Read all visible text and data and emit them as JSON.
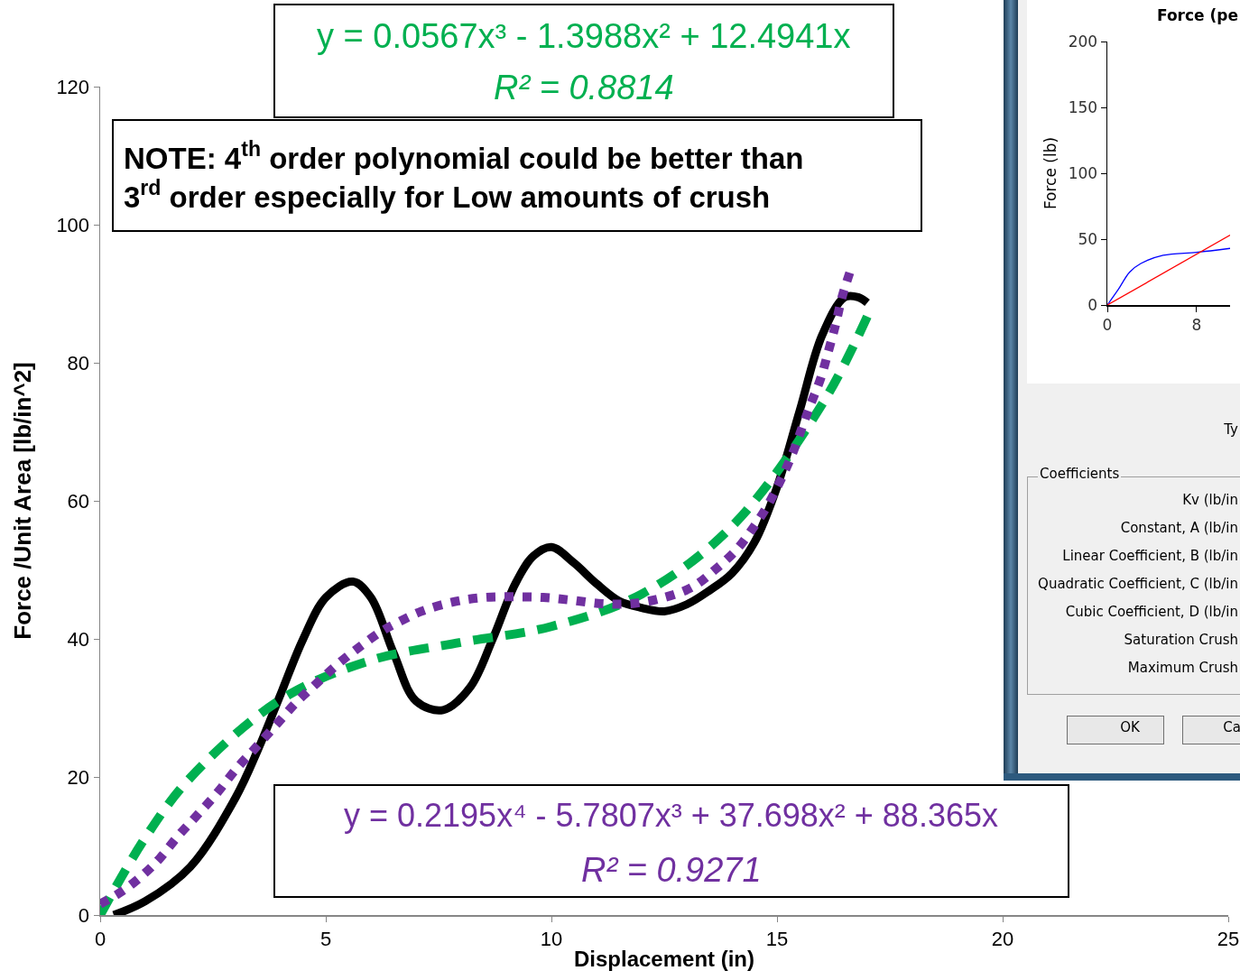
{
  "chart_data": [
    {
      "type": "line",
      "xlabel": "Displacement (in)",
      "ylabel": "Force /Unit Area [lb/in^2]",
      "xlim": [
        0,
        25
      ],
      "xticks": [
        0,
        5,
        10,
        15,
        20,
        25
      ],
      "ylim": [
        0,
        120
      ],
      "yticks": [
        0,
        20,
        40,
        60,
        80,
        100,
        120
      ],
      "marker": "none",
      "series": [
        {
          "color": "#000000",
          "line_style": "solid",
          "x": [
            0.3,
            1,
            2,
            3,
            3.5,
            4,
            4.5,
            5,
            5.6,
            6,
            6.5,
            7,
            7.6,
            8.2,
            8.7,
            9.2,
            9.6,
            10,
            10.5,
            11,
            11.5,
            12,
            12.5,
            13,
            13.5,
            14,
            14.5,
            15,
            15.5,
            16,
            16.5,
            16.8,
            17
          ],
          "values": [
            0,
            2,
            7,
            17,
            24,
            32,
            40,
            46,
            48.3,
            46,
            38,
            31,
            29.7,
            33,
            40,
            48,
            52,
            53.3,
            51,
            48,
            45.5,
            44.5,
            44,
            45,
            47,
            49.5,
            54,
            62,
            73,
            84,
            89.5,
            89.5,
            88.7
          ]
        },
        {
          "color": "#00b050",
          "line_style": "dashed",
          "x": [
            0,
            1,
            2,
            4,
            6,
            8,
            10,
            12,
            14,
            16,
            17
          ],
          "values": [
            0,
            11.2,
            19.9,
            31.2,
            36.9,
            39.5,
            41.8,
            46.5,
            56.3,
            74,
            86.7
          ]
        },
        {
          "color": "#7030a0",
          "line_style": "dotted",
          "x": [
            0,
            0.5,
            0.98,
            1.32,
            1.72,
            2.14,
            2.58,
            3.02,
            3.44,
            3.92,
            4.36,
            4.82,
            5.24,
            5.74,
            6.26,
            6.54,
            7.12,
            7.86,
            8.5,
            9.16,
            9.82,
            10.46,
            11.12,
            11.76,
            12.44,
            13.12,
            13.64,
            14.1,
            14.44,
            14.78,
            15.08,
            15.34,
            15.56,
            15.74,
            15.96,
            16.14,
            16.3,
            16.44,
            16.64
          ],
          "values": [
            1.6,
            3.5,
            6,
            8.2,
            11.4,
            14.4,
            17.6,
            21.2,
            24.2,
            27.7,
            30.9,
            33.7,
            36.2,
            38.8,
            41.2,
            42.2,
            44,
            45.4,
            46,
            46.1,
            46,
            45.6,
            45.1,
            45.1,
            45.9,
            47.5,
            50.1,
            52.9,
            55.8,
            59.2,
            63,
            66.8,
            70.7,
            73.9,
            77.6,
            81.7,
            85.6,
            89.5,
            93.6
          ]
        }
      ],
      "annotations": [
        "y = 0.0567x³ - 1.3988x² + 12.4941x",
        "R² = 0.8814",
        "NOTE: 4$^{th}$ order polynomial could be better than 3$^{rd}$ order especially for Low amounts of crush",
        "y = 0.2195x⁴ - 5.7807x³ + 37.698x² + 88.365x",
        "R² = 0.9271"
      ]
    },
    {
      "type": "line",
      "title": "Force (pe",
      "ylabel": "Force (lb)",
      "xlim": [
        0,
        11
      ],
      "xticks": [
        0,
        8
      ],
      "ylim": [
        0,
        200
      ],
      "yticks": [
        0,
        50,
        100,
        150,
        200
      ],
      "marker": "none",
      "series": [
        {
          "color": "#0000ff",
          "x": [
            0,
            1,
            2,
            3,
            5,
            8,
            11
          ],
          "values": [
            0,
            12,
            25,
            31.5,
            37.7,
            40,
            43
          ]
        },
        {
          "color": "#ff0000",
          "x": [
            0,
            11
          ],
          "values": [
            0,
            53
          ]
        }
      ]
    },
    {
      "type": "other",
      "annotations": [
        "Ty",
        "Coefficients",
        "Kv (lb/in",
        "Constant, A (lb/in",
        "Linear Coefficient, B (lb/in",
        "Quadratic Coefficient, C (lb/in",
        "Cubic Coefficient, D (lb/in",
        "Saturation Crush",
        "Maximum Crush",
        "OK",
        "Ca"
      ]
    }
  ]
}
